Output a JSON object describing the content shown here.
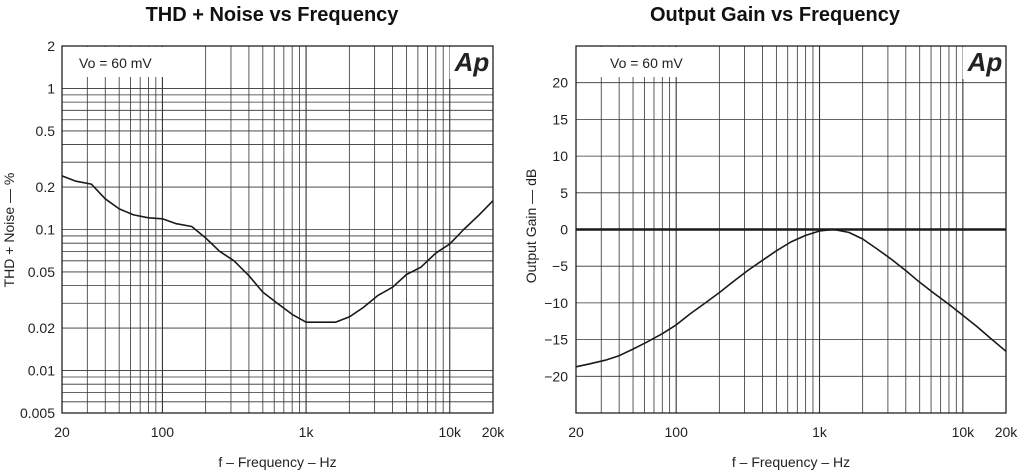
{
  "chart_data": [
    {
      "type": "line",
      "title": "THD + Noise vs Frequency",
      "xlabel": "f – Frequency – Hz",
      "ylabel": "THD + Noise — %",
      "xscale": "log",
      "yscale": "log",
      "xlim": [
        20,
        20000
      ],
      "ylim": [
        0.005,
        2
      ],
      "grid": true,
      "xticks": [
        {
          "value": 20,
          "label": "20"
        },
        {
          "value": 100,
          "label": "100"
        },
        {
          "value": 1000,
          "label": "1k"
        },
        {
          "value": 10000,
          "label": "10k"
        },
        {
          "value": 20000,
          "label": "20k"
        }
      ],
      "yticks": [
        {
          "value": 2,
          "label": "2"
        },
        {
          "value": 1,
          "label": "1"
        },
        {
          "value": 0.5,
          "label": "0.5"
        },
        {
          "value": 0.2,
          "label": "0.2"
        },
        {
          "value": 0.1,
          "label": "0.1"
        },
        {
          "value": 0.05,
          "label": "0.05"
        },
        {
          "value": 0.02,
          "label": "0.02"
        },
        {
          "value": 0.01,
          "label": "0.01"
        },
        {
          "value": 0.005,
          "label": "0.005"
        }
      ],
      "annotation": "Vo = 60 mV",
      "logo": "Ap",
      "series": [
        {
          "x": [
            20,
            25,
            32,
            40,
            50,
            63,
            80,
            100,
            125,
            160,
            200,
            250,
            315,
            400,
            500,
            630,
            800,
            1000,
            1250,
            1600,
            2000,
            2500,
            3150,
            4000,
            5000,
            6300,
            8000,
            10000,
            12500,
            16000,
            20000
          ],
          "y": [
            0.24,
            0.22,
            0.21,
            0.165,
            0.14,
            0.127,
            0.121,
            0.119,
            0.11,
            0.105,
            0.087,
            0.07,
            0.06,
            0.047,
            0.036,
            0.03,
            0.025,
            0.022,
            0.022,
            0.022,
            0.024,
            0.028,
            0.034,
            0.039,
            0.048,
            0.054,
            0.068,
            0.079,
            0.1,
            0.127,
            0.16
          ]
        }
      ]
    },
    {
      "type": "line",
      "title": "Output Gain vs Frequency",
      "xlabel": "f – Frequency – Hz",
      "ylabel": "Output Gain — dB",
      "xscale": "log",
      "yscale": "linear",
      "xlim": [
        20,
        20000
      ],
      "ylim": [
        -25,
        25
      ],
      "grid": true,
      "xticks": [
        {
          "value": 20,
          "label": "20"
        },
        {
          "value": 100,
          "label": "100"
        },
        {
          "value": 1000,
          "label": "1k"
        },
        {
          "value": 10000,
          "label": "10k"
        },
        {
          "value": 20000,
          "label": "20k"
        }
      ],
      "yticks": [
        {
          "value": 20,
          "label": "20"
        },
        {
          "value": 15,
          "label": "15"
        },
        {
          "value": 10,
          "label": "10"
        },
        {
          "value": 5,
          "label": "5"
        },
        {
          "value": 0,
          "label": "0"
        },
        {
          "value": -5,
          "label": "−5"
        },
        {
          "value": -10,
          "label": "−10"
        },
        {
          "value": -15,
          "label": "−15"
        },
        {
          "value": -20,
          "label": "−20"
        }
      ],
      "annotation": "Vo = 60 mV",
      "logo": "Ap",
      "series": [
        {
          "x": [
            20,
            25,
            32,
            40,
            50,
            63,
            80,
            100,
            125,
            160,
            200,
            250,
            315,
            400,
            500,
            630,
            800,
            1000,
            1250,
            1600,
            2000,
            2500,
            3150,
            4000,
            5000,
            6300,
            8000,
            10000,
            12500,
            16000,
            20000
          ],
          "y": [
            -18.7,
            -18.3,
            -17.8,
            -17.2,
            -16.3,
            -15.3,
            -14.2,
            -13.0,
            -11.5,
            -10.0,
            -8.6,
            -7.1,
            -5.6,
            -4.2,
            -2.9,
            -1.7,
            -0.8,
            -0.2,
            0,
            -0.4,
            -1.3,
            -2.6,
            -4.0,
            -5.6,
            -7.2,
            -8.7,
            -10.2,
            -11.7,
            -13.2,
            -15.0,
            -16.6
          ]
        },
        {
          "x": [
            20,
            20000
          ],
          "y": [
            0,
            0
          ]
        }
      ]
    }
  ]
}
